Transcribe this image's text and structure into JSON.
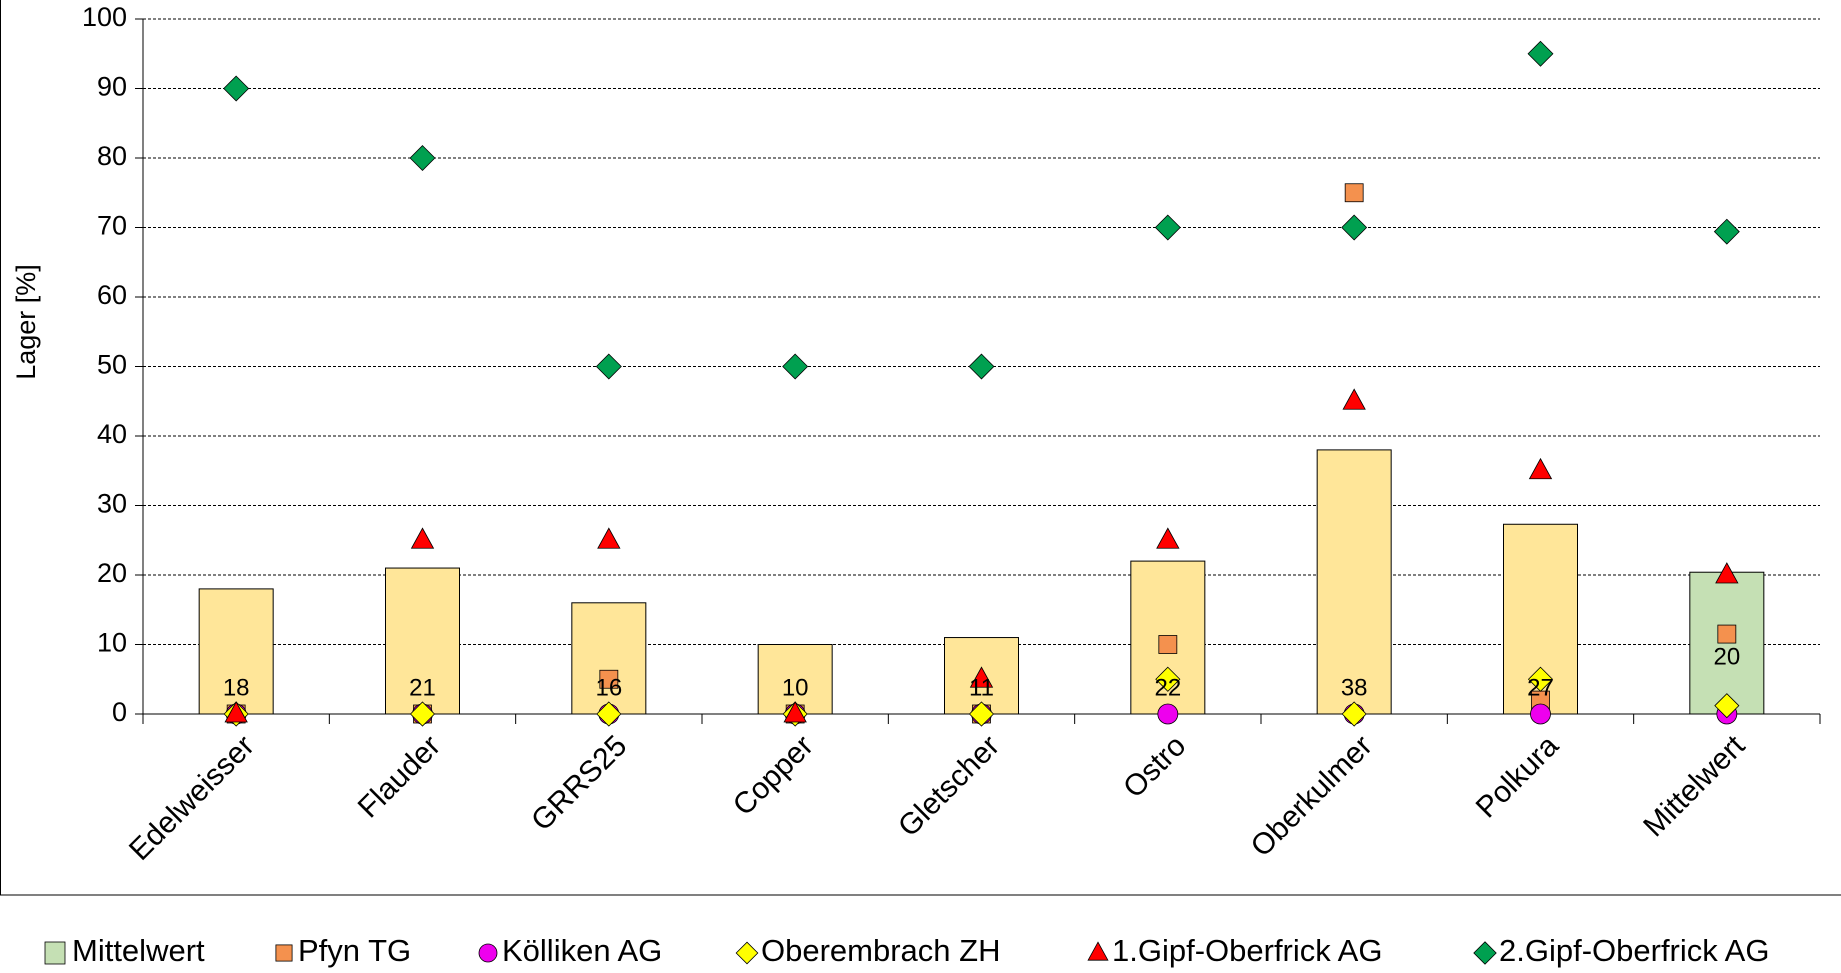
{
  "chart_data": {
    "type": "bar",
    "y_label": "Lager [%]",
    "categories": [
      "Edelweisser",
      "Flauder",
      "GRRS25",
      "Copper",
      "Gletscher",
      "Ostro",
      "Oberkulmer",
      "Polkura",
      "Mittelwert"
    ],
    "ylim": [
      0,
      100
    ],
    "yticks": [
      0,
      10,
      20,
      30,
      40,
      50,
      60,
      70,
      80,
      90,
      100
    ],
    "grid": true,
    "bars": {
      "name": "Mittelwert",
      "color": "#c5e0b4",
      "bar_colors": [
        "#ffe699",
        "#ffe699",
        "#ffe699",
        "#ffe699",
        "#ffe699",
        "#ffe699",
        "#ffe699",
        "#ffe699",
        "#c5e0b4"
      ],
      "values": [
        18,
        21,
        16,
        10,
        11,
        22,
        38,
        27.3,
        20.4
      ],
      "value_labels": [
        "18",
        "21",
        "16",
        "10",
        "11",
        "22",
        "38",
        "27",
        "20"
      ]
    },
    "series": [
      {
        "name": "Pfyn TG",
        "color": "#f4914e",
        "marker": "square",
        "values": [
          0,
          0,
          5,
          0,
          0,
          10,
          75,
          2,
          11.5
        ]
      },
      {
        "name": "Kölliken AG",
        "color": "#ee00ee",
        "marker": "circle",
        "values": [
          0,
          0,
          0,
          0,
          0,
          0,
          0,
          0,
          0
        ]
      },
      {
        "name": "Oberembrach ZH",
        "color": "#ffff00",
        "marker": "diamond-small",
        "values": [
          0,
          0,
          0,
          0,
          0,
          5,
          0,
          5,
          1.2
        ]
      },
      {
        "name": "1.Gipf-Oberfrick AG",
        "color": "#ff0000",
        "marker": "triangle",
        "values": [
          0,
          25,
          25,
          0,
          5,
          25,
          45,
          35,
          20
        ]
      },
      {
        "name": "2.Gipf-Oberfrick AG",
        "color": "#00a050",
        "marker": "diamond",
        "values": [
          90,
          80,
          50,
          50,
          50,
          70,
          70,
          95,
          69.4
        ]
      }
    ]
  }
}
